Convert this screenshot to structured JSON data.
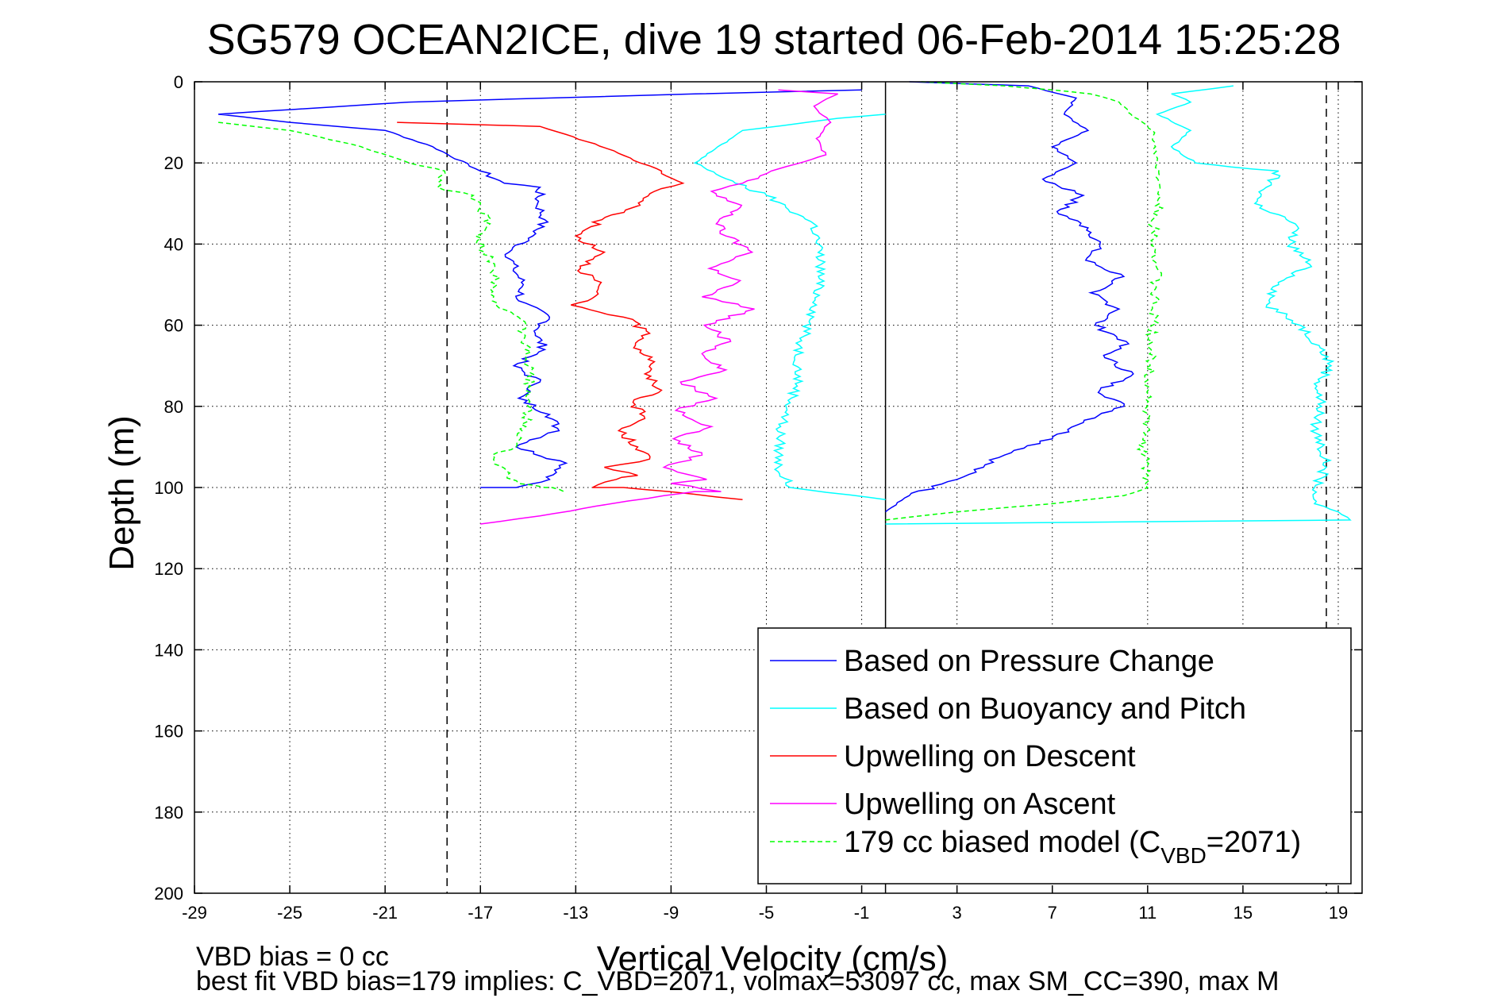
{
  "chart_data": {
    "type": "line",
    "title": "SG579 OCEAN2ICE, dive 19 started 06-Feb-2014 15:25:28",
    "xlabel": "Vertical Velocity (cm/s)",
    "ylabel": "Depth (m)",
    "xlim": [
      -29,
      20
    ],
    "ylim": [
      0,
      200
    ],
    "y_reversed": true,
    "grid": true,
    "x_ticks": [
      "-29",
      "-25",
      "-21",
      "-17",
      "-13",
      "-9",
      "-5",
      "-1",
      "3",
      "7",
      "11",
      "15",
      "19"
    ],
    "y_ticks": [
      "0",
      "20",
      "40",
      "60",
      "80",
      "100",
      "120",
      "140",
      "160",
      "180",
      "200"
    ],
    "reference_lines": {
      "solid_vertical_x": 0,
      "dashed_vertical_x": [
        -18.4,
        18.5
      ]
    },
    "legend_placement": "lower-right",
    "series": [
      {
        "name": "Based on Pressure Change",
        "color": "#0000ff",
        "groups": [
          {
            "x": [
              -1,
              -8,
              -20,
              -28,
              -25,
              -21,
              -19,
              -17,
              -16,
              -14.5,
              -14.6,
              -14.3,
              -14.8,
              -15.8,
              -15.6,
              -15.2,
              -15.4,
              -14.1,
              -14.7,
              -14.3,
              -15.6,
              -14.5,
              -15.4,
              -14.1,
              -13.7,
              -15.5,
              -13.4,
              -14.1,
              -15.5,
              -17
            ],
            "y": [
              2,
              3,
              5,
              8,
              10,
              12,
              16,
              22,
              25,
              26,
              30,
              34,
              38,
              42,
              46,
              50,
              54,
              58,
              62,
              66,
              70,
              74,
              78,
              82,
              86,
              90,
              94,
              98,
              100,
              100
            ]
          },
          {
            "x": [
              1,
              6,
              8,
              7.5,
              8.5,
              7,
              8,
              6.6,
              8.3,
              7.2,
              8.5,
              9,
              8.4,
              10,
              8.6,
              9.8,
              8.8,
              10.1,
              9.2,
              10.4,
              9,
              10,
              8.3,
              7,
              5,
              3,
              1,
              0
            ],
            "y": [
              0,
              1,
              4,
              8,
              12,
              16,
              20,
              24,
              28,
              32,
              36,
              40,
              44,
              48,
              52,
              56,
              60,
              64,
              68,
              72,
              76,
              80,
              84,
              88,
              92,
              98,
              102,
              106
            ]
          }
        ]
      },
      {
        "name": "Based on Buoyancy and Pitch",
        "color": "#00ffff",
        "groups": [
          {
            "x": [
              0,
              -2,
              -6,
              -8,
              -6.3,
              -5,
              -3,
              -2.7,
              -2.9,
              -3.6,
              -3.7,
              -4.4,
              -4.5,
              -4,
              0
            ],
            "y": [
              8,
              9,
              12,
              20,
              25,
              28,
              35,
              45,
              55,
              65,
              75,
              85,
              95,
              100,
              103
            ]
          },
          {
            "x": [
              14.6,
              12,
              12.8,
              11.4,
              12.8,
              12,
              13,
              14.5,
              16.5,
              15.5,
              17.2,
              17,
              17.8,
              16.5,
              16,
              17.4,
              18.2,
              18.7,
              18.1,
              18.3,
              18,
              18.3,
              18.5,
              18,
              18,
              19,
              19.5,
              0
            ],
            "y": [
              1,
              3,
              5,
              8,
              12,
              16,
              20,
              21,
              22,
              30,
              35,
              40,
              45,
              50,
              55,
              60,
              65,
              70,
              75,
              80,
              85,
              90,
              95,
              100,
              104,
              106,
              108,
              109
            ]
          }
        ]
      },
      {
        "name": "Upwelling on Descent",
        "color": "#ff0000",
        "groups": [
          {
            "x": [
              -20.5,
              -14.5,
              -13.4,
              -11.4,
              -10.3,
              -9.4,
              -8.5,
              -9.7,
              -10.6,
              -11.9,
              -13,
              -11.8,
              -12.8,
              -12,
              -12.5,
              -13.2,
              -11,
              -9.9,
              -10.5,
              -9.7,
              -10.1,
              -9.4,
              -10.6,
              -10.1,
              -11.2,
              -10.4,
              -9.9,
              -11.8,
              -10.4,
              -11.3,
              -12.3,
              -11,
              -9.1,
              -6
            ],
            "y": [
              10,
              11,
              13,
              17,
              20,
              22,
              25,
              27,
              31,
              34,
              38,
              42,
              46,
              50,
              54,
              55,
              58,
              62,
              65,
              69,
              72,
              76,
              79,
              83,
              86,
              90,
              93,
              95,
              97,
              98,
              100,
              100,
              101,
              103
            ]
          }
        ]
      },
      {
        "name": "Upwelling on Ascent",
        "color": "#ff00ff",
        "groups": [
          {
            "x": [
              -4.5,
              -2,
              -3,
              -2.3,
              -2.9,
              -2.5,
              -4.8,
              -6,
              -7.3,
              -6.1,
              -7.1,
              -6.7,
              -5.6,
              -7.4,
              -6.1,
              -7.7,
              -5.5,
              -7.6,
              -6.5,
              -7.7,
              -6.7,
              -8.6,
              -7.1,
              -8.8,
              -7.3,
              -8.9,
              -7.7,
              -9.3,
              -7.5,
              -9,
              -6.9,
              -8,
              -9.3,
              -11.5,
              -14.5,
              -17
            ],
            "y": [
              2,
              3,
              6,
              10,
              14,
              18,
              22,
              25,
              27,
              31,
              35,
              38,
              42,
              46,
              49,
              53,
              56,
              60,
              64,
              67,
              71,
              74,
              78,
              81,
              85,
              88,
              92,
              95,
              98,
              99,
              101,
              101,
              102,
              104,
              107,
              109
            ]
          }
        ]
      },
      {
        "name": "179 cc biased model (C",
        "name_sub": "VBD",
        "name_tail": "=2071)",
        "color": "#00ff00",
        "dashed": true,
        "groups": [
          {
            "x": [
              -28,
              -25,
              -22,
              -20,
              -18.5,
              -18.8,
              -17.3,
              -17,
              -16.6,
              -17.2,
              -16.8,
              -16.4,
              -16.3,
              -16.5,
              -15.4,
              -15.2,
              -15.1,
              -15,
              -14.9,
              -15,
              -15.1,
              -15.5,
              -16.5,
              -15.9,
              -15.4,
              -14.3,
              -14,
              -13.5
            ],
            "y": [
              10,
              12,
              16,
              20,
              22,
              26,
              28,
              31,
              35,
              38,
              42,
              46,
              50,
              54,
              58,
              62,
              66,
              70,
              75,
              80,
              85,
              90,
              92,
              97,
              99,
              100,
              100,
              101
            ]
          },
          {
            "x": [
              1.5,
              5,
              7,
              8.6,
              9.8,
              10.3,
              11.2,
              11.4,
              11.5,
              11.2,
              11.4,
              11.3,
              11.4,
              11.3,
              11.2,
              11.1,
              11.0,
              10.8,
              11,
              10,
              7,
              3,
              0
            ],
            "y": [
              0,
              1,
              2,
              3,
              5,
              8,
              12,
              20,
              30,
              34,
              38,
              42,
              46,
              50,
              60,
              70,
              80,
              90,
              100,
              102,
              104,
              106,
              108
            ]
          }
        ]
      }
    ],
    "notes": [
      "VBD bias = 0 cc",
      "best fit VBD bias=179 implies: C_VBD=2071, volmax=53097 cc, max SM_CC=390, max M"
    ]
  }
}
